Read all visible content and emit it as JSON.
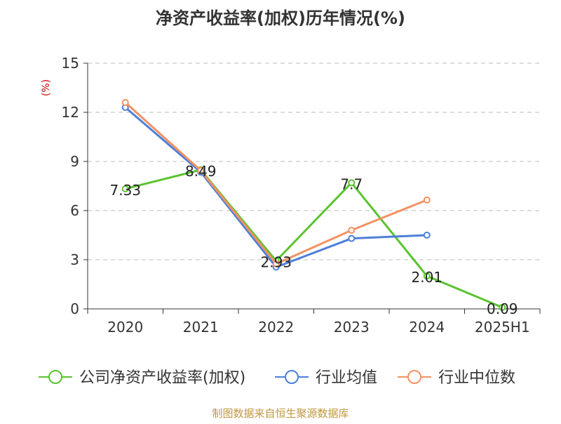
{
  "footer": {
    "source_text": "制图数据来自恒生聚源数据库"
  },
  "chart_data": {
    "type": "line",
    "title": "净资产收益率(加权)历年情况(%)",
    "ylabel": "(%)",
    "xlabel": "",
    "categories": [
      "2020",
      "2021",
      "2022",
      "2023",
      "2024",
      "2025H1"
    ],
    "ylim": [
      0,
      15
    ],
    "yticks": [
      0,
      3,
      6,
      9,
      12,
      15
    ],
    "grid": true,
    "legend_position": "bottom",
    "series": [
      {
        "name": "公司净资产收益率(加权)",
        "color": "#5ac32f",
        "values": [
          7.33,
          8.49,
          2.93,
          7.7,
          2.01,
          0.09
        ],
        "labels": [
          "7.33",
          "8.49",
          "2.93",
          "7.7",
          "2.01",
          "0.09"
        ]
      },
      {
        "name": "行业均值",
        "color": "#4e7fd9",
        "values": [
          12.3,
          8.35,
          2.55,
          4.3,
          4.5,
          null
        ]
      },
      {
        "name": "行业中位数",
        "color": "#f39262",
        "values": [
          12.6,
          8.45,
          2.75,
          4.8,
          6.65,
          null
        ]
      }
    ]
  }
}
